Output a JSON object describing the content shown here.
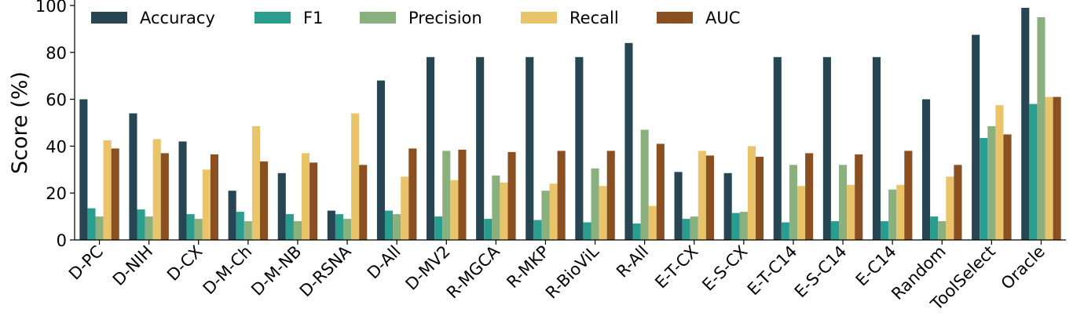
{
  "chart_data": {
    "type": "bar",
    "title": "",
    "xlabel": "",
    "ylabel": "Score (%)",
    "ylim": [
      0,
      100
    ],
    "yticks": [
      0,
      20,
      40,
      60,
      80,
      100
    ],
    "grid": false,
    "legend_position": "top",
    "categories": [
      "D-PC",
      "D-NIH",
      "D-CX",
      "D-M-Ch",
      "D-M-NB",
      "D-RSNA",
      "D-All",
      "D-MV2",
      "R-MGCA",
      "R-MKP",
      "R-BioViL",
      "R-All",
      "E-T-CX",
      "E-S-CX",
      "E-T-C14",
      "E-S-C14",
      "E-C14",
      "Random",
      "ToolSelect",
      "Oracle"
    ],
    "series": [
      {
        "name": "Accuracy",
        "color": "#264653",
        "values": [
          60,
          54,
          42,
          21,
          28.5,
          12.5,
          68,
          78,
          78,
          78,
          78,
          84,
          29,
          28.5,
          78,
          78,
          78,
          60,
          87.5,
          99
        ]
      },
      {
        "name": "F1",
        "color": "#2a9d8f",
        "values": [
          13.5,
          13,
          11,
          12,
          11,
          11,
          12.5,
          10,
          9,
          8.5,
          7.5,
          7,
          9,
          11.5,
          7.5,
          8,
          8,
          10,
          43.5,
          58
        ]
      },
      {
        "name": "Precision",
        "color": "#8ab17d",
        "values": [
          10,
          10,
          9,
          8,
          8,
          9,
          11,
          38,
          27.5,
          21,
          30.5,
          47,
          10,
          12,
          32,
          32,
          21.5,
          8,
          48.5,
          95
        ]
      },
      {
        "name": "Recall",
        "color": "#e9c46a",
        "values": [
          42.5,
          43,
          30,
          48.5,
          37,
          54,
          27,
          25.5,
          24.5,
          24,
          23,
          14.5,
          38,
          40,
          23,
          23.5,
          23.5,
          27,
          57.5,
          61
        ]
      },
      {
        "name": "AUC",
        "color": "#8b5022",
        "values": [
          39,
          37,
          36.5,
          33.5,
          33,
          32,
          39,
          38.5,
          37.5,
          38,
          38,
          41,
          36,
          35.5,
          37,
          36.5,
          38,
          32,
          45,
          61
        ]
      }
    ]
  }
}
